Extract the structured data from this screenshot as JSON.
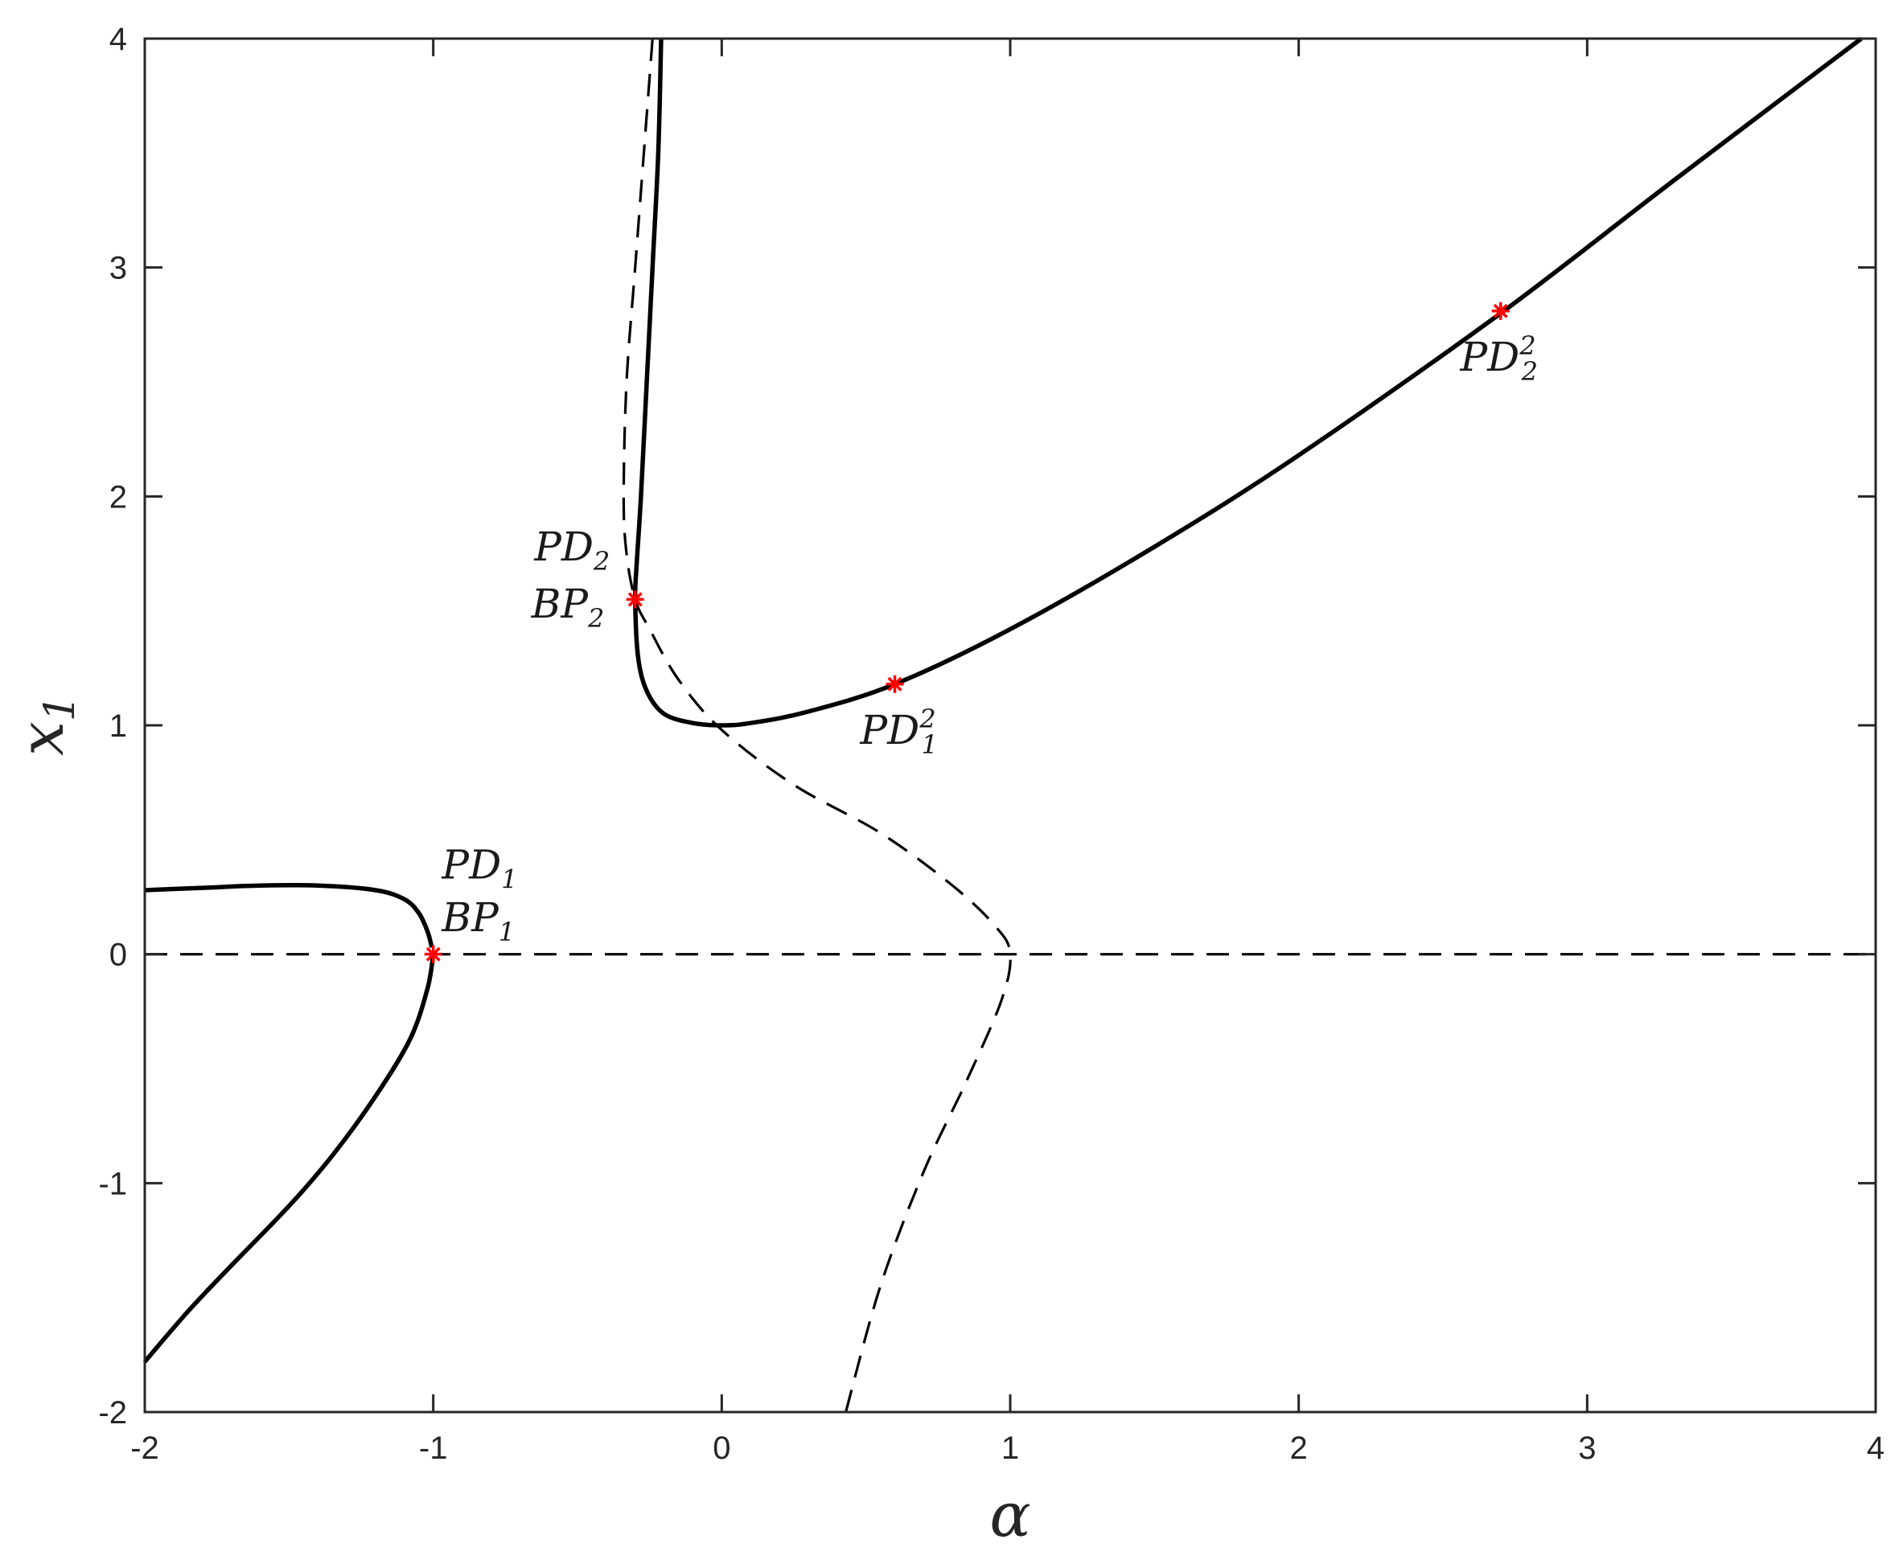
{
  "chart_data": {
    "type": "line",
    "title": "",
    "xlabel": "α",
    "ylabel_base": "x",
    "ylabel_sub": "1",
    "xlim": [
      -2,
      4
    ],
    "ylim": [
      -2,
      4
    ],
    "xticks": [
      -2,
      -1,
      0,
      1,
      2,
      3,
      4
    ],
    "yticks": [
      -2,
      -1,
      0,
      1,
      2,
      3,
      4
    ],
    "grid": false,
    "series": [
      {
        "style": "solid",
        "x": [
          -2,
          -1.8,
          -1.6,
          -1.4,
          -1.2,
          -1.1,
          -1.05,
          -1.02,
          -1.005
        ],
        "y": [
          0.28,
          0.29,
          0.3,
          0.3,
          0.28,
          0.24,
          0.18,
          0.1,
          0.03
        ]
      },
      {
        "style": "solid",
        "x": [
          -1.0,
          -1.02,
          -1.08,
          -1.2,
          -1.35,
          -1.5,
          -1.7,
          -1.85,
          -2.0
        ],
        "y": [
          0.0,
          -0.15,
          -0.37,
          -0.62,
          -0.88,
          -1.1,
          -1.36,
          -1.56,
          -1.78
        ]
      },
      {
        "style": "solid",
        "x": [
          -0.21,
          -0.22,
          -0.24,
          -0.26,
          -0.28,
          -0.295,
          -0.3,
          -0.29,
          -0.26,
          -0.2,
          -0.1,
          0.0,
          0.1,
          0.3,
          0.6,
          1.0,
          1.5,
          2.0,
          2.7,
          3.3,
          3.95
        ],
        "y": [
          4.0,
          3.5,
          3.0,
          2.5,
          2.0,
          1.7,
          1.55,
          1.3,
          1.15,
          1.05,
          1.01,
          1.0,
          1.01,
          1.06,
          1.18,
          1.42,
          1.78,
          2.18,
          2.8,
          3.38,
          4.0
        ]
      },
      {
        "style": "dashed",
        "x": [
          -0.24,
          -0.27,
          -0.3,
          -0.33,
          -0.34,
          -0.33,
          -0.3,
          -0.25,
          -0.15,
          0.0,
          0.25,
          0.55,
          0.8,
          0.95,
          1.0,
          0.97,
          0.85,
          0.7,
          0.55,
          0.43
        ],
        "y": [
          4.0,
          3.5,
          3.0,
          2.5,
          2.0,
          1.75,
          1.55,
          1.42,
          1.2,
          0.98,
          0.74,
          0.53,
          0.3,
          0.12,
          0.0,
          -0.2,
          -0.55,
          -0.95,
          -1.45,
          -2.0
        ]
      },
      {
        "style": "dashed",
        "x": [
          -2,
          4
        ],
        "y": [
          0,
          0
        ]
      }
    ],
    "points": [
      {
        "x": -1.0,
        "y": 0.0
      },
      {
        "x": -0.3,
        "y": 1.55
      },
      {
        "x": 0.6,
        "y": 1.18
      },
      {
        "x": 2.7,
        "y": 2.81
      }
    ],
    "point_color": "#ff0000",
    "line_color": "#000000",
    "annotations": [
      {
        "base": "PD",
        "sub": "1",
        "sup": "",
        "x": -0.97,
        "y": 0.33
      },
      {
        "base": "BP",
        "sub": "1",
        "sup": "",
        "x": -0.97,
        "y": 0.1
      },
      {
        "base": "PD",
        "sub": "2",
        "sup": "",
        "x": -0.65,
        "y": 1.72
      },
      {
        "base": "BP",
        "sub": "2",
        "sup": "",
        "x": -0.66,
        "y": 1.47
      },
      {
        "base": "PD",
        "sub": "1",
        "sup": "2",
        "x": 0.48,
        "y": 0.92
      },
      {
        "base": "PD",
        "sub": "2",
        "sup": "2",
        "x": 2.56,
        "y": 2.55
      }
    ]
  }
}
